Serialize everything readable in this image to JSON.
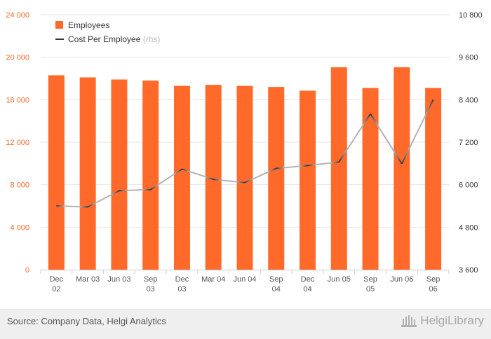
{
  "chart_data": {
    "type": "bar+line",
    "categories": [
      [
        "Dec",
        "02"
      ],
      [
        "Mar 03"
      ],
      [
        "Jun 03"
      ],
      [
        "Sep",
        "03"
      ],
      [
        "Dec",
        "03"
      ],
      [
        "Mar 04"
      ],
      [
        "Jun 04"
      ],
      [
        "Sep",
        "04"
      ],
      [
        "Dec",
        "04"
      ],
      [
        "Jun 05"
      ],
      [
        "Sep",
        "05"
      ],
      [
        "Jun 06"
      ],
      [
        "Sep",
        "06"
      ]
    ],
    "series": [
      {
        "name": "Employees",
        "type": "bar",
        "axis": "left",
        "color": "#ff6a2b",
        "values": [
          18300,
          18100,
          17900,
          17800,
          17300,
          17400,
          17300,
          17200,
          16850,
          19050,
          17100,
          19050,
          17100
        ]
      },
      {
        "name": "Cost Per Employee",
        "name_suffix": "(rhs)",
        "type": "line",
        "axis": "right",
        "color": "#333333",
        "values": [
          5400,
          5370,
          5830,
          5860,
          6440,
          6150,
          6060,
          6460,
          6540,
          6640,
          8000,
          6590,
          8400
        ]
      }
    ],
    "y_left": {
      "ticks": [
        "0",
        "4 000",
        "8 000",
        "12 000",
        "16 000",
        "20 000",
        "24 000"
      ],
      "range": [
        0,
        24000
      ]
    },
    "y_right": {
      "ticks": [
        "3 600",
        "4 800",
        "6 000",
        "7 200",
        "8 400",
        "9 600",
        "10 800"
      ],
      "range": [
        3600,
        10800
      ]
    },
    "legend_position": "top-left",
    "grid": "horizontal"
  },
  "footer": {
    "source": "Source: Company Data, Helgi Analytics",
    "logo_text": "HelgiLibrary"
  }
}
